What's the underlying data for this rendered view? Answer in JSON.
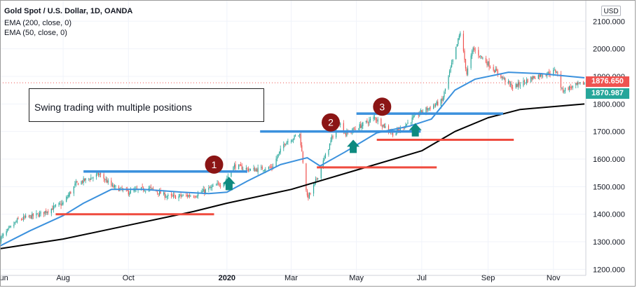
{
  "legend": {
    "title": "Gold Spot / U.S. Dollar, 1D, OANDA",
    "ema200": "EMA (200, close, 0)",
    "ema50": "EMA (50, close, 0)"
  },
  "annotation_text": "Swing trading with multiple positions",
  "currency_badge": "USD",
  "price_tags": {
    "last": "1876.650",
    "ema": "1870.987",
    "last_color": "#ef5350",
    "ema_color": "#26a69a"
  },
  "colors": {
    "up": "#26a69a",
    "down": "#ef5350",
    "ema50": "#3b91dd",
    "ema200": "#000000",
    "resistance": "#3b91dd",
    "support": "#ef4b3f",
    "marker": "#8b1515",
    "arrow": "#0e8a80"
  },
  "chart_data": {
    "type": "candlestick",
    "title": "Gold Spot / U.S. Dollar, 1D, OANDA",
    "ylim": [
      1200,
      2120
    ],
    "x_range": [
      "2019-06-03",
      "2020-11-30"
    ],
    "y_ticks": [
      "1200.000",
      "1300.000",
      "1400.000",
      "1500.000",
      "1600.000",
      "1700.000",
      "1800.000",
      "1900.000",
      "2000.000",
      "2100.000"
    ],
    "x_ticks": [
      {
        "date": "2019-06-03",
        "label": "Jun"
      },
      {
        "date": "2019-08-01",
        "label": "Aug"
      },
      {
        "date": "2019-10-01",
        "label": "Oct"
      },
      {
        "date": "2020-01-01",
        "label": "2020"
      },
      {
        "date": "2020-03-01",
        "label": "Mar"
      },
      {
        "date": "2020-05-01",
        "label": "May"
      },
      {
        "date": "2020-07-01",
        "label": "Jul"
      },
      {
        "date": "2020-09-01",
        "label": "Sep"
      },
      {
        "date": "2020-11-01",
        "label": "Nov"
      }
    ],
    "price_path": [
      [
        "2019-06-03",
        1310
      ],
      [
        "2019-06-20",
        1380
      ],
      [
        "2019-07-10",
        1400
      ],
      [
        "2019-08-01",
        1440
      ],
      [
        "2019-08-13",
        1510
      ],
      [
        "2019-09-04",
        1545
      ],
      [
        "2019-09-16",
        1500
      ],
      [
        "2019-10-01",
        1480
      ],
      [
        "2019-10-20",
        1495
      ],
      [
        "2019-11-08",
        1462
      ],
      [
        "2019-12-03",
        1470
      ],
      [
        "2019-12-30",
        1518
      ],
      [
        "2020-01-08",
        1575
      ],
      [
        "2020-01-24",
        1560
      ],
      [
        "2020-02-12",
        1570
      ],
      [
        "2020-02-24",
        1660
      ],
      [
        "2020-03-09",
        1690
      ],
      [
        "2020-03-16",
        1460
      ],
      [
        "2020-03-20",
        1480
      ],
      [
        "2020-04-01",
        1600
      ],
      [
        "2020-04-14",
        1740
      ],
      [
        "2020-04-21",
        1690
      ],
      [
        "2020-05-18",
        1750
      ],
      [
        "2020-06-05",
        1690
      ],
      [
        "2020-06-30",
        1770
      ],
      [
        "2020-07-20",
        1810
      ],
      [
        "2020-08-06",
        2060
      ],
      [
        "2020-08-12",
        1910
      ],
      [
        "2020-08-18",
        2000
      ],
      [
        "2020-09-05",
        1930
      ],
      [
        "2020-09-24",
        1860
      ],
      [
        "2020-10-15",
        1900
      ],
      [
        "2020-11-04",
        1920
      ],
      [
        "2020-11-09",
        1850
      ],
      [
        "2020-11-30",
        1876
      ]
    ],
    "ema50": [
      [
        "2019-06-03",
        1285
      ],
      [
        "2019-07-01",
        1340
      ],
      [
        "2019-08-01",
        1395
      ],
      [
        "2019-08-20",
        1440
      ],
      [
        "2019-09-15",
        1490
      ],
      [
        "2019-10-15",
        1490
      ],
      [
        "2019-11-20",
        1480
      ],
      [
        "2019-12-15",
        1475
      ],
      [
        "2020-01-01",
        1480
      ],
      [
        "2020-01-20",
        1520
      ],
      [
        "2020-02-20",
        1580
      ],
      [
        "2020-03-16",
        1605
      ],
      [
        "2020-03-28",
        1575
      ],
      [
        "2020-04-20",
        1625
      ],
      [
        "2020-05-20",
        1695
      ],
      [
        "2020-06-20",
        1720
      ],
      [
        "2020-07-10",
        1745
      ],
      [
        "2020-08-01",
        1850
      ],
      [
        "2020-08-20",
        1890
      ],
      [
        "2020-09-20",
        1915
      ],
      [
        "2020-10-20",
        1910
      ],
      [
        "2020-11-30",
        1895
      ]
    ],
    "ema200": [
      [
        "2019-06-03",
        1275
      ],
      [
        "2019-08-01",
        1310
      ],
      [
        "2019-10-01",
        1360
      ],
      [
        "2019-12-01",
        1410
      ],
      [
        "2020-01-01",
        1440
      ],
      [
        "2020-03-01",
        1490
      ],
      [
        "2020-05-01",
        1560
      ],
      [
        "2020-07-01",
        1630
      ],
      [
        "2020-08-01",
        1700
      ],
      [
        "2020-09-01",
        1750
      ],
      [
        "2020-10-01",
        1780
      ],
      [
        "2020-11-30",
        1800
      ]
    ],
    "resistance_levels": [
      {
        "start": "2019-08-20",
        "end": "2020-01-20",
        "price": 1555
      },
      {
        "start": "2020-02-01",
        "end": "2020-06-30",
        "price": 1700
      },
      {
        "start": "2020-05-01",
        "end": "2020-09-15",
        "price": 1765
      }
    ],
    "support_levels": [
      {
        "start": "2019-07-25",
        "end": "2019-12-20",
        "price": 1400
      },
      {
        "start": "2020-03-25",
        "end": "2020-07-15",
        "price": 1570
      },
      {
        "start": "2020-05-20",
        "end": "2020-09-25",
        "price": 1670
      }
    ],
    "entry_markers": [
      {
        "label": "1",
        "date": "2019-12-20",
        "price": 1580
      },
      {
        "label": "2",
        "date": "2020-04-07",
        "price": 1733
      },
      {
        "label": "3",
        "date": "2020-05-25",
        "price": 1790
      }
    ],
    "entry_arrows": [
      {
        "date": "2020-01-03",
        "price": 1510
      },
      {
        "date": "2020-04-28",
        "price": 1645
      },
      {
        "date": "2020-06-25",
        "price": 1705
      }
    ],
    "current_price_line": 1876.65
  }
}
